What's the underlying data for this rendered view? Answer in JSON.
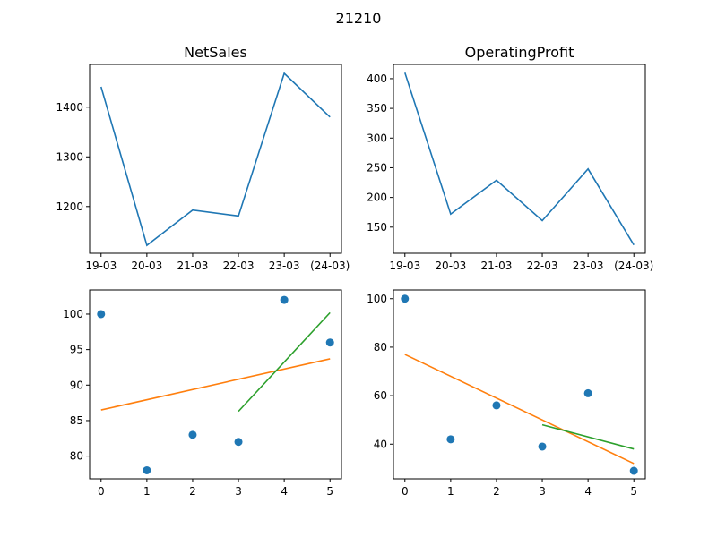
{
  "figure": {
    "title": "21210"
  },
  "chart_data": [
    {
      "type": "line",
      "title": "NetSales",
      "xlabel": "",
      "ylabel": "",
      "categories": [
        "19-03",
        "20-03",
        "21-03",
        "22-03",
        "23-03",
        "(24-03)"
      ],
      "series": [
        {
          "values": [
            1441,
            1122,
            1193,
            1181,
            1468,
            1380
          ],
          "color": "#1f77b4"
        }
      ],
      "ylim": [
        1106,
        1486
      ],
      "yticks": [
        1200,
        1300,
        1400
      ],
      "grid": false
    },
    {
      "type": "line",
      "title": "OperatingProfit",
      "xlabel": "",
      "ylabel": "",
      "categories": [
        "19-03",
        "20-03",
        "21-03",
        "22-03",
        "23-03",
        "(24-03)"
      ],
      "series": [
        {
          "values": [
            410,
            172,
            229,
            161,
            248,
            120
          ],
          "color": "#1f77b4"
        }
      ],
      "ylim": [
        106,
        424
      ],
      "yticks": [
        150,
        200,
        250,
        300,
        350,
        400
      ],
      "grid": false
    },
    {
      "type": "scatter",
      "title": "",
      "xlabel": "",
      "ylabel": "",
      "points": {
        "x": [
          0,
          1,
          2,
          3,
          4,
          5
        ],
        "y": [
          100,
          78,
          83,
          82,
          102,
          96
        ],
        "color": "#1f77b4"
      },
      "lines": [
        {
          "x": [
            0,
            5
          ],
          "y": [
            86.5,
            93.7
          ],
          "color": "#ff7f0e"
        },
        {
          "x": [
            3,
            5
          ],
          "y": [
            86.3,
            100.2
          ],
          "color": "#2ca02c"
        }
      ],
      "xlim": [
        -0.25,
        5.25
      ],
      "ylim": [
        76.8,
        103.4
      ],
      "xticks": [
        0,
        1,
        2,
        3,
        4,
        5
      ],
      "yticks": [
        80,
        85,
        90,
        95,
        100
      ],
      "grid": false
    },
    {
      "type": "scatter",
      "title": "",
      "xlabel": "",
      "ylabel": "",
      "points": {
        "x": [
          0,
          1,
          2,
          3,
          4,
          5
        ],
        "y": [
          100,
          42,
          56,
          39,
          61,
          29
        ],
        "color": "#1f77b4"
      },
      "lines": [
        {
          "x": [
            0,
            5
          ],
          "y": [
            77,
            32
          ],
          "color": "#ff7f0e"
        },
        {
          "x": [
            3,
            5
          ],
          "y": [
            48,
            38
          ],
          "color": "#2ca02c"
        }
      ],
      "xlim": [
        -0.25,
        5.25
      ],
      "ylim": [
        25.7,
        103.6
      ],
      "xticks": [
        0,
        1,
        2,
        3,
        4,
        5
      ],
      "yticks": [
        40,
        60,
        80,
        100
      ],
      "grid": false
    }
  ]
}
